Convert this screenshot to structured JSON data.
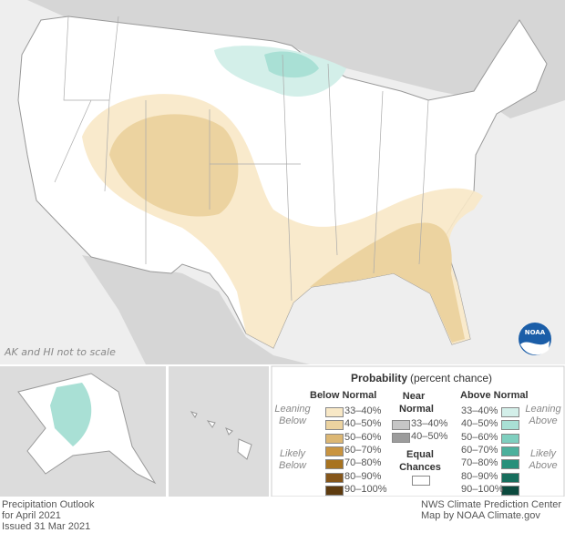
{
  "map_note": "AK and HI not to scale",
  "logo_text": "NOAA",
  "legend": {
    "title": "Probability",
    "subtitle": "(percent chance)",
    "below": {
      "header": "Below Normal",
      "leaning": "Leaning Below",
      "likely": "Likely Below",
      "items": [
        {
          "label": "33–40%",
          "color": "#f8e8c6"
        },
        {
          "label": "40–50%",
          "color": "#ecd3a0"
        },
        {
          "label": "50–60%",
          "color": "#dcb774"
        },
        {
          "label": "60–70%",
          "color": "#c99440"
        },
        {
          "label": "70–80%",
          "color": "#a8731f"
        },
        {
          "label": "80–90%",
          "color": "#85561a"
        },
        {
          "label": "90–100%",
          "color": "#5e3b0f"
        }
      ]
    },
    "near": {
      "header": "Near Normal",
      "items": [
        {
          "label": "33–40%",
          "color": "#c6c6c6"
        },
        {
          "label": "40–50%",
          "color": "#9c9c9c"
        }
      ]
    },
    "equal": "Equal Chances",
    "above": {
      "header": "Above Normal",
      "leaning": "Leaning Above",
      "likely": "Likely Above",
      "items": [
        {
          "label": "33–40%",
          "color": "#d3efe9"
        },
        {
          "label": "40–50%",
          "color": "#a9e0d5"
        },
        {
          "label": "50–60%",
          "color": "#7fcfbf"
        },
        {
          "label": "60–70%",
          "color": "#4cb09c"
        },
        {
          "label": "70–80%",
          "color": "#27907b"
        },
        {
          "label": "80–90%",
          "color": "#176e5d"
        },
        {
          "label": "90–100%",
          "color": "#0b4a3e"
        }
      ]
    }
  },
  "footer_left": [
    "Precipitation Outlook",
    "for April 2021",
    "Issued 31 Mar 2021"
  ],
  "footer_right": [
    "NWS Climate Prediction Center",
    "Map by NOAA Climate.gov"
  ]
}
